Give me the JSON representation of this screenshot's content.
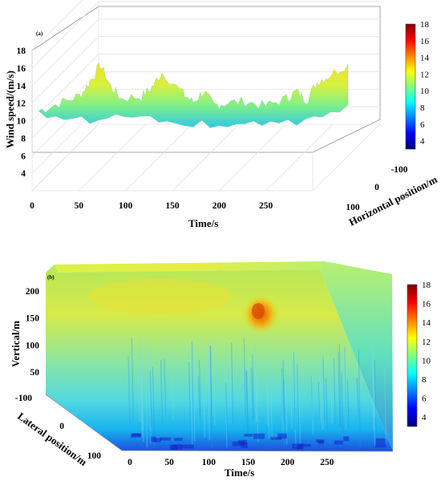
{
  "chart_data": [
    {
      "type": "area",
      "panel_label": "(a)",
      "zlabel": "Wind speed/(m/s)",
      "xlabel": "Time/s",
      "ylabel": "Horizontal position/m",
      "x_ticks": [
        "0",
        "50",
        "100",
        "150",
        "200",
        "250"
      ],
      "y_ticks": [
        "-100",
        "0",
        "100"
      ],
      "z_ticks": [
        "4",
        "6",
        "8",
        "10",
        "12",
        "14",
        "16",
        "18"
      ],
      "xlim": [
        0,
        300
      ],
      "ylim": [
        -100,
        100
      ],
      "zlim": [
        2,
        18
      ],
      "grid": true,
      "colormap": "jet",
      "colorbar_ticks": [
        "18",
        "16",
        "14",
        "12",
        "10",
        "8",
        "6",
        "4"
      ],
      "colorbar_range": [
        3,
        18
      ],
      "surface_profile": {
        "x": [
          0,
          20,
          40,
          50,
          60,
          70,
          80,
          100,
          110,
          120,
          140,
          150,
          160,
          170,
          180,
          200,
          220,
          240,
          250,
          260,
          270,
          280,
          300
        ],
        "y": [
          10.4,
          11.2,
          12.0,
          13.6,
          15.5,
          13.0,
          11.6,
          11.8,
          12.8,
          14.5,
          12.0,
          11.0,
          12.2,
          10.6,
          10.8,
          11.0,
          10.4,
          11.2,
          12.0,
          11.0,
          13.0,
          13.6,
          15.0
        ]
      }
    },
    {
      "type": "heatmap",
      "panel_label": "(b)",
      "xlabel": "Time/s",
      "ylabel": "Lateral position/m",
      "zlabel": "Vertical/m",
      "x_ticks": [
        "0",
        "50",
        "100",
        "150",
        "200",
        "250"
      ],
      "y_ticks": [
        "-100",
        "0",
        "100"
      ],
      "z_ticks": [
        "50",
        "100",
        "150",
        "200"
      ],
      "xlim": [
        0,
        300
      ],
      "ylim": [
        -100,
        100
      ],
      "zlim": [
        0,
        225
      ],
      "colormap": "jet",
      "colorbar_ticks": [
        "18",
        "16",
        "14",
        "12",
        "10",
        "8",
        "6",
        "4"
      ],
      "colorbar_range": [
        3,
        18
      ]
    }
  ],
  "colors": {
    "colormap_stops": [
      "#00007f",
      "#0000ff",
      "#0080ff",
      "#00ffff",
      "#80ff80",
      "#ffff00",
      "#ff8000",
      "#ff0000",
      "#7f0000"
    ],
    "grid": "#e2e2e2",
    "frame": "#8f8f8f"
  }
}
